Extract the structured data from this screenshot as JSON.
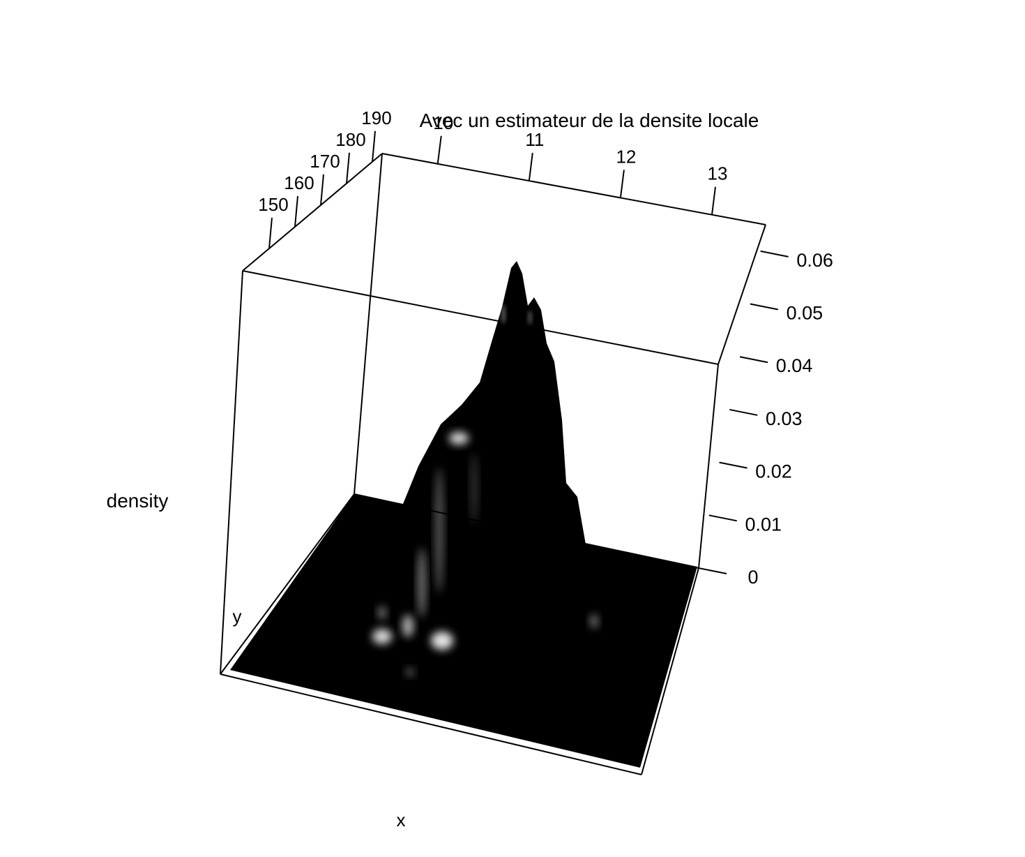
{
  "chart_data": {
    "type": "surface3d",
    "title": "Avec un estimateur de la densite locale",
    "xlabel": "x",
    "ylabel": "y",
    "zlabel": "density",
    "x_ticks": [
      "10",
      "11",
      "12",
      "13"
    ],
    "y_ticks": [
      "150",
      "160",
      "170",
      "180",
      "190"
    ],
    "z_ticks": [
      "0",
      "0.01",
      "0.02",
      "0.03",
      "0.04",
      "0.05",
      "0.06"
    ],
    "zlim": [
      0,
      0.065
    ],
    "surface_color": "#000000",
    "highlight_color": "#ffffff",
    "peaks": [
      {
        "x": 10.8,
        "y": 180,
        "density": 0.063
      },
      {
        "x": 11.0,
        "y": 178,
        "density": 0.055
      }
    ]
  }
}
